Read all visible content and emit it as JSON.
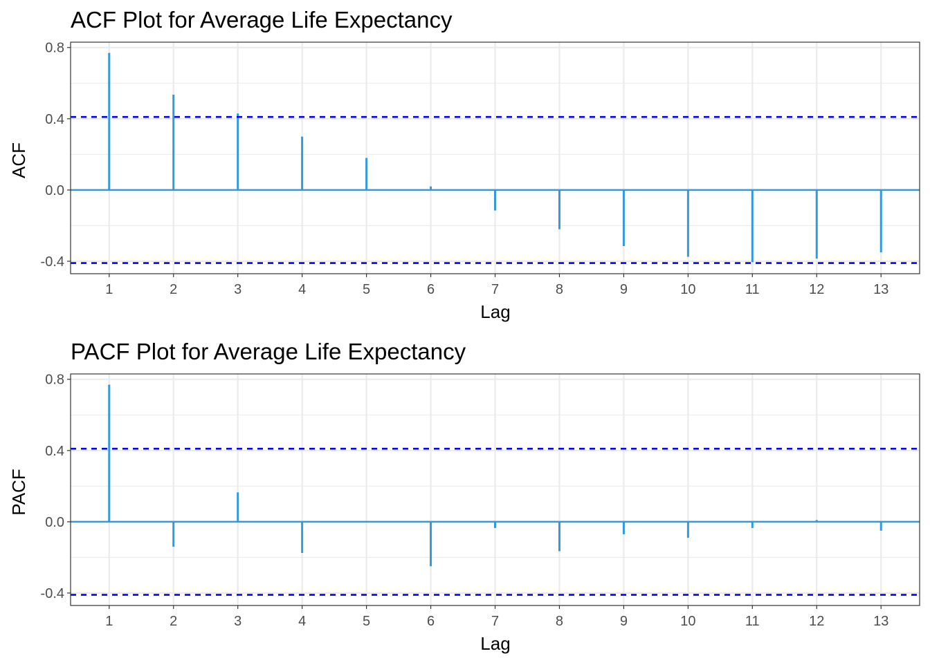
{
  "chart_data": [
    {
      "type": "bar",
      "title": "ACF Plot for Average Life Expectancy",
      "xlabel": "Lag",
      "ylabel": "ACF",
      "x": [
        1,
        2,
        3,
        4,
        5,
        6,
        7,
        8,
        9,
        10,
        11,
        12,
        13
      ],
      "values": [
        0.77,
        0.535,
        0.43,
        0.3,
        0.18,
        0.02,
        -0.115,
        -0.22,
        -0.315,
        -0.375,
        -0.405,
        -0.385,
        -0.35
      ],
      "confidence_bound": 0.41,
      "xlim": [
        0.4,
        13.6
      ],
      "ylim": [
        -0.47,
        0.83
      ],
      "x_ticks": [
        "1",
        "2",
        "3",
        "4",
        "5",
        "6",
        "7",
        "8",
        "9",
        "10",
        "11",
        "12",
        "13"
      ],
      "y_ticks": [
        0.8,
        0.4,
        0.0,
        -0.4
      ],
      "y_tick_labels": [
        "0.8",
        "0.4",
        "0.0",
        "-0.4"
      ],
      "grid": true,
      "colors": {
        "bars": "#3399db",
        "bounds": "#0000ff",
        "grid": "#ebebeb"
      }
    },
    {
      "type": "bar",
      "title": "PACF Plot for Average Life Expectancy",
      "xlabel": "Lag",
      "ylabel": "PACF",
      "x": [
        1,
        2,
        3,
        4,
        5,
        6,
        7,
        8,
        9,
        10,
        11,
        12,
        13
      ],
      "values": [
        0.77,
        -0.14,
        0.165,
        -0.175,
        0.0,
        -0.25,
        -0.035,
        -0.165,
        -0.07,
        -0.09,
        -0.035,
        0.01,
        -0.05
      ],
      "confidence_bound": 0.41,
      "xlim": [
        0.4,
        13.6
      ],
      "ylim": [
        -0.47,
        0.83
      ],
      "x_ticks": [
        "1",
        "2",
        "3",
        "4",
        "5",
        "6",
        "7",
        "8",
        "9",
        "10",
        "11",
        "12",
        "13"
      ],
      "y_ticks": [
        0.8,
        0.4,
        0.0,
        -0.4
      ],
      "y_tick_labels": [
        "0.8",
        "0.4",
        "0.0",
        "-0.4"
      ],
      "grid": true,
      "colors": {
        "bars": "#3399db",
        "bounds": "#0000ff",
        "grid": "#ebebeb"
      }
    }
  ]
}
